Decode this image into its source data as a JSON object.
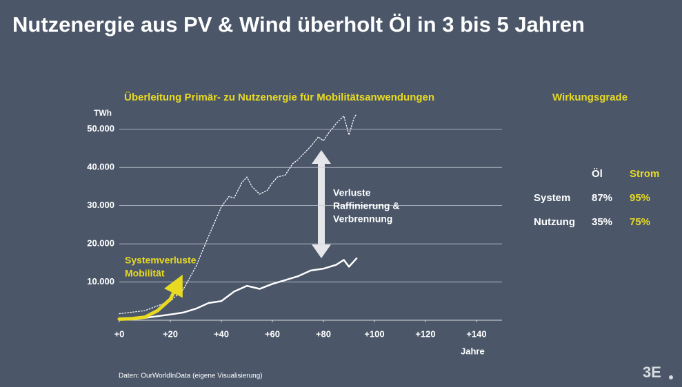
{
  "title": "Nutzenergie aus PV & Wind überholt Öl in 3 bis 5 Jahren",
  "chart_data": {
    "type": "line",
    "subtitle": "Überleitung Primär- zu Nutzenergie für Mobilitätsanwendungen",
    "y_label": "TWh",
    "x_label": "Jahre",
    "xlim": [
      0,
      150
    ],
    "ylim": [
      0,
      55000
    ],
    "xticks": [
      {
        "value": 0,
        "label": "+0"
      },
      {
        "value": 20,
        "label": "+20"
      },
      {
        "value": 40,
        "label": "+40"
      },
      {
        "value": 60,
        "label": "+60"
      },
      {
        "value": 80,
        "label": "+80"
      },
      {
        "value": 100,
        "label": "+100"
      },
      {
        "value": 120,
        "label": "+120"
      },
      {
        "value": 140,
        "label": "+140"
      }
    ],
    "yticks": [
      {
        "value": 10000,
        "label": "10.000"
      },
      {
        "value": 20000,
        "label": "20.000"
      },
      {
        "value": 30000,
        "label": "30.000"
      },
      {
        "value": 40000,
        "label": "40.000"
      },
      {
        "value": 50000,
        "label": "50.000"
      }
    ],
    "grid": true,
    "series": [
      {
        "color": "#ffffff",
        "style": "dotted",
        "x": [
          0,
          10,
          20,
          25,
          30,
          35,
          40,
          43,
          45,
          48,
          50,
          52,
          55,
          58,
          60,
          62,
          65,
          68,
          70,
          75,
          78,
          80,
          82,
          85,
          88,
          90,
          92,
          93
        ],
        "values": [
          1700,
          2500,
          5000,
          8000,
          14000,
          22000,
          29700,
          32400,
          32000,
          36000,
          37500,
          35000,
          33000,
          34000,
          36000,
          37500,
          38000,
          41000,
          42000,
          45500,
          48000,
          47000,
          49000,
          51500,
          53500,
          48500,
          53000,
          54000
        ]
      },
      {
        "color": "#ffffff",
        "style": "solid",
        "x": [
          0,
          10,
          20,
          25,
          30,
          35,
          40,
          45,
          50,
          55,
          60,
          65,
          70,
          75,
          80,
          85,
          88,
          90,
          93
        ],
        "values": [
          300,
          600,
          1500,
          2000,
          3000,
          4500,
          5000,
          7500,
          9000,
          8200,
          9500,
          10500,
          11500,
          13000,
          13500,
          14500,
          15800,
          14000,
          16200
        ]
      },
      {
        "color": "#e8d923",
        "style": "thick",
        "x": [
          0,
          5,
          10,
          15,
          20,
          23
        ],
        "values": [
          300,
          400,
          800,
          2500,
          5500,
          9500
        ]
      }
    ],
    "annotations": [
      {
        "lines": [
          "Verluste",
          "Raffinierung &",
          "Verbrennung"
        ],
        "color": "#ffffff"
      },
      {
        "lines": [
          "Systemverluste",
          "Mobilität"
        ],
        "color": "#e8d923"
      }
    ]
  },
  "efficiency": {
    "title": "Wirkungsgrade",
    "header": [
      "Öl",
      "Strom"
    ],
    "rows": [
      [
        "System",
        "87%",
        "95%"
      ],
      [
        "Nutzung",
        "35%",
        "75%"
      ]
    ]
  },
  "source": "Daten: OurWorldInData (eigene Visualisierung)",
  "logo": "3E"
}
